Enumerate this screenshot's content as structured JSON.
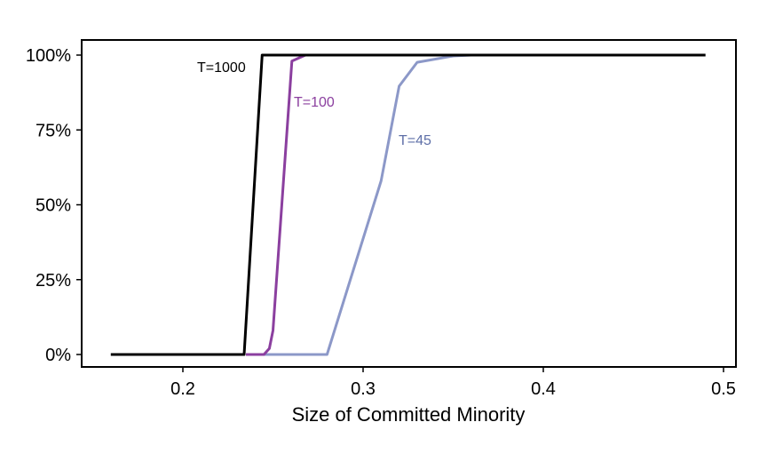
{
  "chart_data": {
    "type": "line",
    "title": "",
    "xlabel": "Size of Committed Minority",
    "ylabel": "",
    "xlim": [
      0.145,
      0.505
    ],
    "ylim": [
      -4,
      104
    ],
    "xticks": [
      0.2,
      0.3,
      0.4,
      0.5
    ],
    "xtick_labels": [
      "0.2",
      "0.3",
      "0.4",
      "0.5"
    ],
    "yticks": [
      0,
      25,
      50,
      75,
      100
    ],
    "ytick_labels": [
      "0%",
      "25%",
      "50%",
      "75%",
      "100%"
    ],
    "grid": false,
    "legend": "inline labels",
    "series": [
      {
        "name": "T=45",
        "color": "#8c98c8",
        "label_color": "#5f70a8",
        "x": [
          0.245,
          0.28,
          0.31,
          0.32,
          0.33,
          0.35,
          0.36,
          0.385
        ],
        "y": [
          0,
          0,
          58,
          89.6,
          97.6,
          99.7,
          100,
          100
        ]
      },
      {
        "name": "T=100",
        "color": "#8b3f9f",
        "label_color": "#8b3f9f",
        "x": [
          0.235,
          0.245,
          0.248,
          0.25,
          0.2605,
          0.268
        ],
        "y": [
          0,
          0,
          2,
          8,
          98,
          100
        ]
      },
      {
        "name": "T=1000",
        "color": "#000000",
        "label_color": "#000000",
        "x": [
          0.16,
          0.234,
          0.244,
          0.49
        ],
        "y": [
          0,
          0,
          100,
          100
        ]
      }
    ]
  }
}
